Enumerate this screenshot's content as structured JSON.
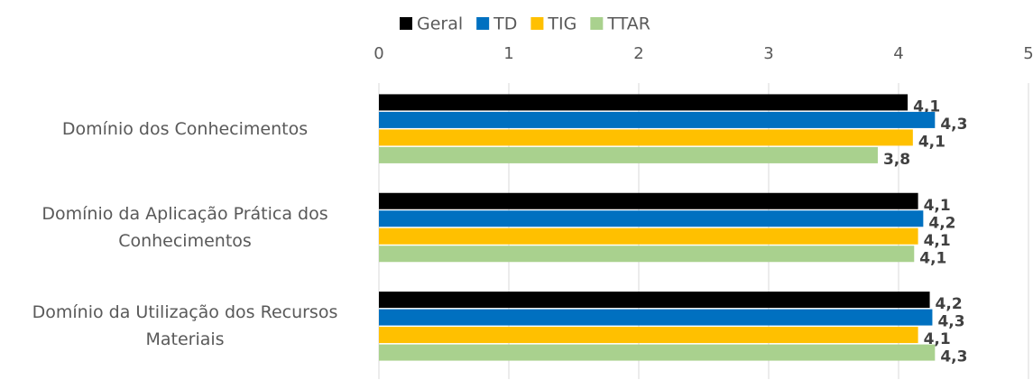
{
  "chart_data": {
    "type": "bar",
    "orientation": "horizontal",
    "categories": [
      "Domínio dos Conhecimentos",
      "Domínio da Aplicação Prática dos Conhecimentos",
      "Domínio da Utilização dos Recursos Materiais"
    ],
    "series": [
      {
        "name": "Geral",
        "color": "#000000",
        "values": [
          4.07,
          4.15,
          4.24
        ],
        "value_labels": [
          "4,1",
          "4,1",
          "4,2"
        ]
      },
      {
        "name": "TD",
        "color": "#0070c0",
        "values": [
          4.28,
          4.19,
          4.26
        ],
        "value_labels": [
          "4,3",
          "4,2",
          "4,3"
        ]
      },
      {
        "name": "TIG",
        "color": "#ffc000",
        "values": [
          4.11,
          4.15,
          4.15
        ],
        "value_labels": [
          "4,1",
          "4,1",
          "4,1"
        ]
      },
      {
        "name": "TTAR",
        "color": "#a9d18e",
        "values": [
          3.84,
          4.12,
          4.28
        ],
        "value_labels": [
          "3,8",
          "4,1",
          "4,3"
        ]
      }
    ],
    "xlim": [
      0,
      5
    ],
    "xticks": [
      0,
      1,
      2,
      3,
      4,
      5
    ],
    "grid": true,
    "legend": "top"
  }
}
